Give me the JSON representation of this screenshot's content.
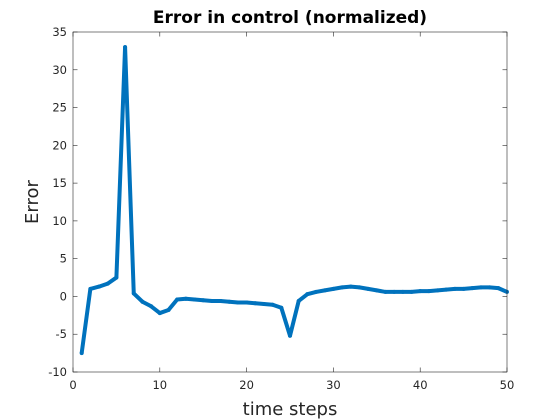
{
  "chart_data": {
    "type": "line",
    "title": "Error in control (normalized)",
    "xlabel": "time steps",
    "ylabel": "Error",
    "xlim": [
      0,
      50
    ],
    "ylim": [
      -10,
      35
    ],
    "xticks": [
      0,
      10,
      20,
      30,
      40,
      50
    ],
    "yticks": [
      -10,
      -5,
      0,
      5,
      10,
      15,
      20,
      25,
      30,
      35
    ],
    "grid": false,
    "series": [
      {
        "name": "error",
        "color": "#0072BD",
        "x": [
          1,
          2,
          3,
          4,
          5,
          6,
          7,
          8,
          9,
          10,
          11,
          12,
          13,
          14,
          15,
          16,
          17,
          18,
          19,
          20,
          21,
          22,
          23,
          24,
          25,
          26,
          27,
          28,
          29,
          30,
          31,
          32,
          33,
          34,
          35,
          36,
          37,
          38,
          39,
          40,
          41,
          42,
          43,
          44,
          45,
          46,
          47,
          48,
          49,
          50
        ],
        "values": [
          -7.5,
          1.0,
          1.3,
          1.7,
          2.5,
          33.0,
          0.4,
          -0.7,
          -1.3,
          -2.2,
          -1.8,
          -0.4,
          -0.3,
          -0.4,
          -0.5,
          -0.6,
          -0.6,
          -0.7,
          -0.8,
          -0.8,
          -0.9,
          -1.0,
          -1.1,
          -1.5,
          -5.2,
          -0.6,
          0.3,
          0.6,
          0.8,
          1.0,
          1.2,
          1.3,
          1.2,
          1.0,
          0.8,
          0.6,
          0.6,
          0.6,
          0.6,
          0.7,
          0.7,
          0.8,
          0.9,
          1.0,
          1.0,
          1.1,
          1.2,
          1.2,
          1.1,
          0.6
        ]
      }
    ]
  }
}
